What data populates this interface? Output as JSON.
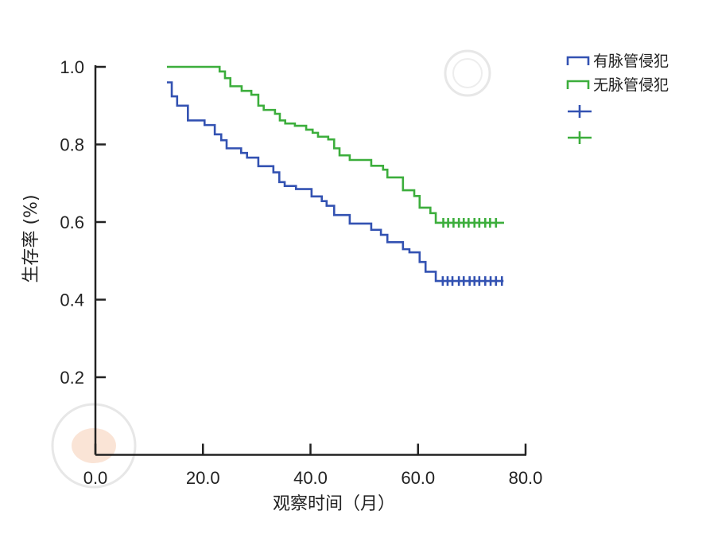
{
  "chart_data": {
    "type": "line",
    "subtype": "kaplan-meier step",
    "title": "",
    "xlabel": "观察时间（月）",
    "ylabel": "生存率 (%)",
    "xlim": [
      0,
      80
    ],
    "ylim": [
      0,
      1.0
    ],
    "xticks": [
      "0.0",
      "20.0",
      "40.0",
      "60.0",
      "80.0"
    ],
    "xtick_values": [
      0,
      20,
      40,
      60,
      80
    ],
    "yticks": [
      "0.2",
      "0.4",
      "0.6",
      "0.8",
      "1.0"
    ],
    "ytick_values": [
      0.2,
      0.4,
      0.6,
      0.8,
      1.0
    ],
    "grid": false,
    "legend_position": "top-right",
    "series": [
      {
        "name": "有脉管侵犯",
        "color": "#3352b2",
        "steps": [
          [
            13.3,
            0.96
          ],
          [
            14.2,
            0.924
          ],
          [
            15.2,
            0.9
          ],
          [
            17.2,
            0.862
          ],
          [
            20.3,
            0.85
          ],
          [
            22.2,
            0.826
          ],
          [
            23.4,
            0.811
          ],
          [
            24.4,
            0.79
          ],
          [
            27.1,
            0.778
          ],
          [
            28.2,
            0.766
          ],
          [
            30.3,
            0.744
          ],
          [
            33.1,
            0.728
          ],
          [
            34.2,
            0.703
          ],
          [
            35.2,
            0.693
          ],
          [
            37.3,
            0.685
          ],
          [
            40.2,
            0.666
          ],
          [
            42.1,
            0.654
          ],
          [
            43.0,
            0.642
          ],
          [
            44.4,
            0.618
          ],
          [
            47.3,
            0.596
          ],
          [
            51.3,
            0.58
          ],
          [
            53.1,
            0.567
          ],
          [
            54.3,
            0.548
          ],
          [
            57.2,
            0.53
          ],
          [
            58.4,
            0.522
          ],
          [
            60.3,
            0.497
          ],
          [
            61.4,
            0.472
          ],
          [
            63.3,
            0.448
          ]
        ],
        "end_time": 75.9,
        "censored": [
          64.6,
          65.5,
          66.4,
          67.6,
          68.5,
          69.6,
          70.5,
          71.4,
          72.5,
          73.5,
          74.5,
          75.6
        ]
      },
      {
        "name": "无脉管侵犯",
        "color": "#3cae3c",
        "steps": [
          [
            13.3,
            1.0
          ],
          [
            23.1,
            0.988
          ],
          [
            24.1,
            0.971
          ],
          [
            25.1,
            0.95
          ],
          [
            27.2,
            0.938
          ],
          [
            29.0,
            0.928
          ],
          [
            30.3,
            0.9
          ],
          [
            31.3,
            0.889
          ],
          [
            33.4,
            0.879
          ],
          [
            34.3,
            0.862
          ],
          [
            35.3,
            0.854
          ],
          [
            37.1,
            0.848
          ],
          [
            39.2,
            0.838
          ],
          [
            40.4,
            0.83
          ],
          [
            41.4,
            0.82
          ],
          [
            43.3,
            0.813
          ],
          [
            44.4,
            0.79
          ],
          [
            45.4,
            0.772
          ],
          [
            47.3,
            0.76
          ],
          [
            51.3,
            0.745
          ],
          [
            53.5,
            0.735
          ],
          [
            54.3,
            0.715
          ],
          [
            57.2,
            0.682
          ],
          [
            59.3,
            0.667
          ],
          [
            60.3,
            0.637
          ],
          [
            62.3,
            0.623
          ],
          [
            63.3,
            0.598
          ]
        ],
        "end_time": 76.0,
        "censored": [
          64.7,
          65.6,
          66.6,
          67.6,
          68.5,
          69.4,
          70.5,
          71.4,
          72.5,
          73.4,
          74.5
        ]
      }
    ]
  }
}
